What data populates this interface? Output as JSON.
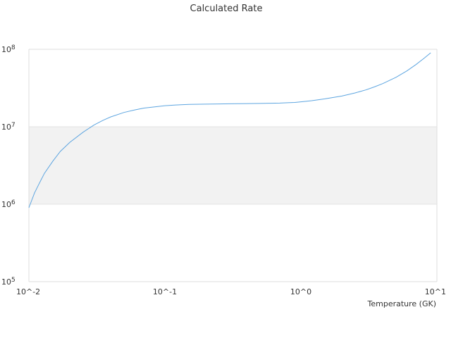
{
  "chart_data": {
    "type": "line",
    "title": "Calculated Rate",
    "xlabel": "Temperature (GK)",
    "ylabel": "",
    "xscale": "log",
    "yscale": "log",
    "xlim": [
      0.01,
      10
    ],
    "ylim": [
      100000,
      100000000
    ],
    "x_tick_labels": [
      "10^-2",
      "10^-1",
      "10^0",
      "10^1"
    ],
    "y_tick_labels": [
      {
        "base": "10",
        "exp": "5"
      },
      {
        "base": "10",
        "exp": "6"
      },
      {
        "base": "10",
        "exp": "7"
      },
      {
        "base": "10",
        "exp": "8"
      }
    ],
    "band": {
      "from": 1000000,
      "to": 10000000,
      "color": "#f2f2f2"
    },
    "grid": false,
    "line_color": "#5da5e0",
    "series": [
      {
        "x": [
          0.01,
          0.011,
          0.012,
          0.013,
          0.015,
          0.017,
          0.02,
          0.025,
          0.03,
          0.035,
          0.04,
          0.05,
          0.06,
          0.07,
          0.08,
          0.1,
          0.12,
          0.15,
          0.2,
          0.25,
          0.3,
          0.4,
          0.5,
          0.6,
          0.7,
          0.8,
          0.9,
          1.0,
          1.2,
          1.5,
          2.0,
          2.5,
          3.0,
          3.5,
          4.0,
          5.0,
          6.0,
          7.0,
          8.0,
          9.0
        ],
        "y": [
          900000,
          1400000,
          1900000,
          2500000,
          3600000,
          4800000,
          6300000,
          8500000,
          10500000,
          12100000,
          13400000,
          15300000,
          16500000,
          17400000,
          17900000,
          18700000,
          19100000,
          19400000,
          19600000,
          19700000,
          19800000,
          19900000,
          20000000,
          20100000,
          20200000,
          20400000,
          20600000,
          21000000,
          21700000,
          22900000,
          24900000,
          27300000,
          29900000,
          32900000,
          36100000,
          43500000,
          52500000,
          63300000,
          76000000,
          90000000
        ]
      }
    ]
  }
}
